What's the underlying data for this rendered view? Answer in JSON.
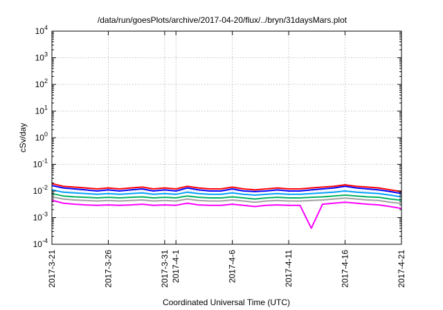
{
  "chart_data": {
    "type": "line",
    "title": "/data/run/goesPlots/archive/2017-04-20/flux/../bryn/31daysMars.plot",
    "xlabel": "Coordinated Universal Time (UTC)",
    "ylabel": "cSv/day",
    "yscale": "log",
    "ylim": [
      0.0001,
      10000
    ],
    "xlim": [
      "2017-03-21",
      "2017-04-21"
    ],
    "grid": true,
    "y_ticks": [
      {
        "base": "10",
        "exp": "-4",
        "value": 0.0001
      },
      {
        "base": "10",
        "exp": "-3",
        "value": 0.001
      },
      {
        "base": "10",
        "exp": "-2",
        "value": 0.01
      },
      {
        "base": "10",
        "exp": "-1",
        "value": 0.1
      },
      {
        "base": "10",
        "exp": "0",
        "value": 1
      },
      {
        "base": "10",
        "exp": "1",
        "value": 10
      },
      {
        "base": "10",
        "exp": "2",
        "value": 100
      },
      {
        "base": "10",
        "exp": "3",
        "value": 1000
      },
      {
        "base": "10",
        "exp": "4",
        "value": 10000
      }
    ],
    "x_ticks": [
      {
        "label": "2017-3-21",
        "date": "2017-03-21"
      },
      {
        "label": "2017-3-26",
        "date": "2017-03-26"
      },
      {
        "label": "2017-3-31",
        "date": "2017-03-31"
      },
      {
        "label": "2017-4-1",
        "date": "2017-04-01"
      },
      {
        "label": "2017-4-6",
        "date": "2017-04-06"
      },
      {
        "label": "2017-4-11",
        "date": "2017-04-11"
      },
      {
        "label": "2017-4-16",
        "date": "2017-04-16"
      },
      {
        "label": "2017-4-21",
        "date": "2017-04-21"
      }
    ],
    "x": [
      "2017-03-21",
      "2017-03-22",
      "2017-03-23",
      "2017-03-24",
      "2017-03-25",
      "2017-03-26",
      "2017-03-27",
      "2017-03-28",
      "2017-03-29",
      "2017-03-30",
      "2017-03-31",
      "2017-04-01",
      "2017-04-02",
      "2017-04-03",
      "2017-04-04",
      "2017-04-05",
      "2017-04-06",
      "2017-04-07",
      "2017-04-08",
      "2017-04-09",
      "2017-04-10",
      "2017-04-11",
      "2017-04-12",
      "2017-04-13",
      "2017-04-14",
      "2017-04-15",
      "2017-04-16",
      "2017-04-17",
      "2017-04-18",
      "2017-04-19",
      "2017-04-20",
      "2017-04-21"
    ],
    "series": [
      {
        "color": "#ff0000",
        "values": [
          0.019,
          0.015,
          0.014,
          0.013,
          0.012,
          0.013,
          0.012,
          0.013,
          0.014,
          0.012,
          0.013,
          0.012,
          0.015,
          0.013,
          0.012,
          0.012,
          0.014,
          0.012,
          0.011,
          0.012,
          0.013,
          0.012,
          0.012,
          0.013,
          0.014,
          0.015,
          0.017,
          0.015,
          0.014,
          0.013,
          0.011,
          0.0095
        ]
      },
      {
        "color": "#0000ff",
        "values": [
          0.016,
          0.013,
          0.012,
          0.011,
          0.01,
          0.011,
          0.01,
          0.011,
          0.012,
          0.01,
          0.011,
          0.01,
          0.013,
          0.011,
          0.01,
          0.01,
          0.012,
          0.01,
          0.0095,
          0.01,
          0.011,
          0.01,
          0.01,
          0.011,
          0.012,
          0.013,
          0.015,
          0.013,
          0.012,
          0.011,
          0.0095,
          0.008
        ]
      },
      {
        "color": "#00a0ff",
        "values": [
          0.011,
          0.009,
          0.0085,
          0.008,
          0.0075,
          0.008,
          0.0075,
          0.008,
          0.0085,
          0.0075,
          0.008,
          0.0075,
          0.009,
          0.008,
          0.0075,
          0.0075,
          0.0085,
          0.0075,
          0.007,
          0.0075,
          0.008,
          0.0075,
          0.0075,
          0.008,
          0.0085,
          0.009,
          0.01,
          0.009,
          0.0085,
          0.008,
          0.007,
          0.006
        ]
      },
      {
        "color": "#00b060",
        "values": [
          0.008,
          0.0065,
          0.006,
          0.0058,
          0.0055,
          0.0058,
          0.0055,
          0.0058,
          0.006,
          0.0055,
          0.0058,
          0.0055,
          0.0065,
          0.0058,
          0.0055,
          0.0055,
          0.006,
          0.0055,
          0.005,
          0.0055,
          0.0058,
          0.0055,
          0.0055,
          0.0058,
          0.006,
          0.0065,
          0.007,
          0.0065,
          0.006,
          0.0058,
          0.005,
          0.0045
        ]
      },
      {
        "color": "#a0a0a0",
        "values": [
          0.006,
          0.005,
          0.0046,
          0.0044,
          0.0042,
          0.0044,
          0.0042,
          0.0044,
          0.0046,
          0.0042,
          0.0044,
          0.0042,
          0.005,
          0.0044,
          0.0042,
          0.0042,
          0.0046,
          0.0042,
          0.0038,
          0.0042,
          0.0044,
          0.0042,
          0.0042,
          0.0044,
          0.0046,
          0.005,
          0.0054,
          0.005,
          0.0046,
          0.0044,
          0.0038,
          0.0034
        ]
      },
      {
        "color": "#ff00ff",
        "values": [
          0.0045,
          0.0035,
          0.0032,
          0.003,
          0.0029,
          0.003,
          0.0029,
          0.003,
          0.0032,
          0.0029,
          0.003,
          0.0029,
          0.0035,
          0.003,
          0.0029,
          0.0029,
          0.0032,
          0.0029,
          0.0026,
          0.0029,
          0.003,
          0.0029,
          0.0029,
          0.0004,
          0.0032,
          0.0035,
          0.0038,
          0.0035,
          0.0032,
          0.003,
          0.0026,
          0.0022
        ]
      }
    ]
  }
}
